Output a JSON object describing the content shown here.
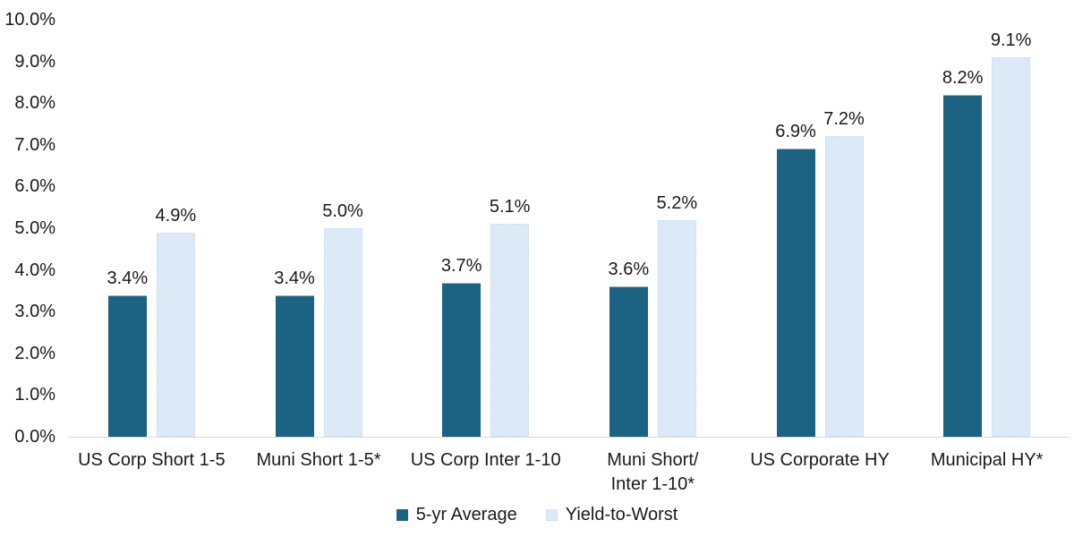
{
  "chart_data": {
    "type": "bar",
    "title": "",
    "xlabel": "",
    "ylabel": "",
    "grid": false,
    "legend_position": "bottom",
    "ylim": [
      0,
      10
    ],
    "ytick_labels": [
      "0.0%",
      "1.0%",
      "2.0%",
      "3.0%",
      "4.0%",
      "5.0%",
      "6.0%",
      "7.0%",
      "8.0%",
      "9.0%",
      "10.0%"
    ],
    "categories": [
      "US Corp Short 1-5",
      "Muni Short 1-5*",
      "US Corp Inter 1-10",
      "Muni Short/\nInter 1-10*",
      "US Corporate HY",
      "Municipal HY*"
    ],
    "series": [
      {
        "name": "5-yr Average",
        "color": "#1c6383",
        "values": [
          3.4,
          3.4,
          3.7,
          3.6,
          6.9,
          8.2
        ],
        "labels": [
          "3.4%",
          "3.4%",
          "3.7%",
          "3.6%",
          "6.9%",
          "8.2%"
        ]
      },
      {
        "name": "Yield-to-Worst",
        "color": "#dce9f7",
        "border_color": "#c9dcf0",
        "values": [
          4.9,
          5.0,
          5.1,
          5.2,
          7.2,
          9.1
        ],
        "labels": [
          "4.9%",
          "5.0%",
          "5.1%",
          "5.2%",
          "7.2%",
          "9.1%"
        ]
      }
    ],
    "colors": {
      "axis_line": "#d9d9d9",
      "text": "#1a1a1a",
      "background": "#ffffff"
    }
  }
}
